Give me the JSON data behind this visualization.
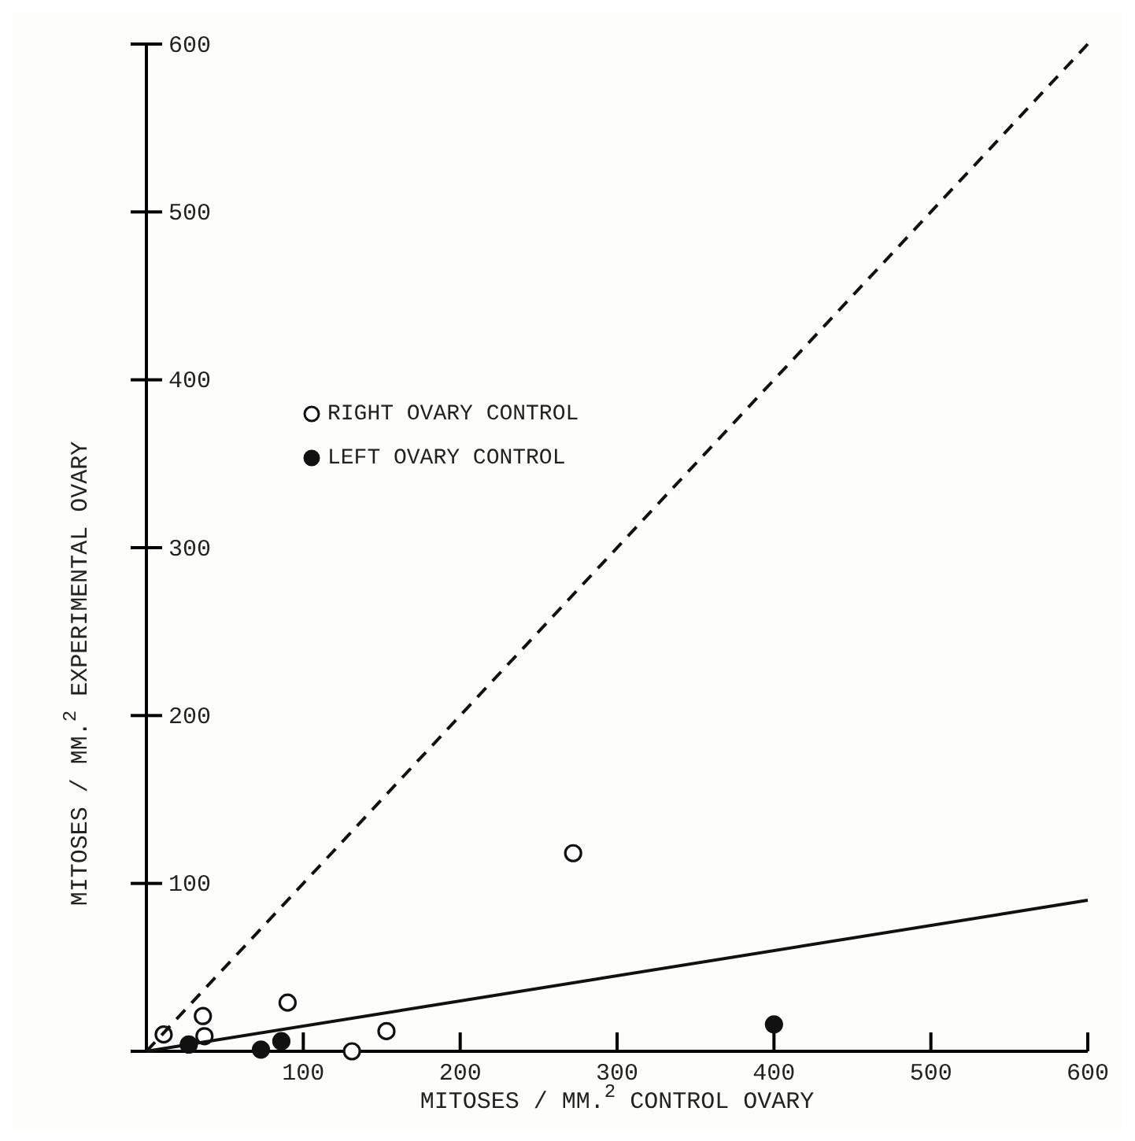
{
  "chart_data": {
    "type": "scatter",
    "xlabel": "MITOSES / MM.$^{2}$ CONTROL OVARY",
    "ylabel": "MITOSES / MM.$^{2}$ EXPERIMENTAL OVARY",
    "xlim": [
      0,
      600
    ],
    "ylim": [
      0,
      600
    ],
    "xticks": [
      100,
      200,
      300,
      400,
      500,
      600
    ],
    "yticks": [
      100,
      200,
      300,
      400,
      500,
      600
    ],
    "grid": false,
    "legend": "top left",
    "series": [
      {
        "name": "RIGHT OVARY CONTROL",
        "color": "#ffffff",
        "marker": "circle",
        "x": [
          11,
          36,
          37,
          90,
          131,
          153,
          272
        ],
        "values": [
          10,
          21,
          9,
          29,
          0,
          12,
          118
        ]
      },
      {
        "name": "LEFT OVARY CONTROL",
        "color": "#111111",
        "marker": "circle",
        "x": [
          27,
          73,
          86,
          400
        ],
        "values": [
          4,
          1,
          6,
          16
        ]
      },
      {
        "type": "line",
        "color": "#111111",
        "line_style": "dashed",
        "x": [
          0,
          600
        ],
        "values": [
          0,
          600
        ]
      },
      {
        "type": "line",
        "color": "#111111",
        "line_style": "solid",
        "x": [
          0,
          600
        ],
        "values": [
          0,
          90
        ]
      }
    ]
  }
}
